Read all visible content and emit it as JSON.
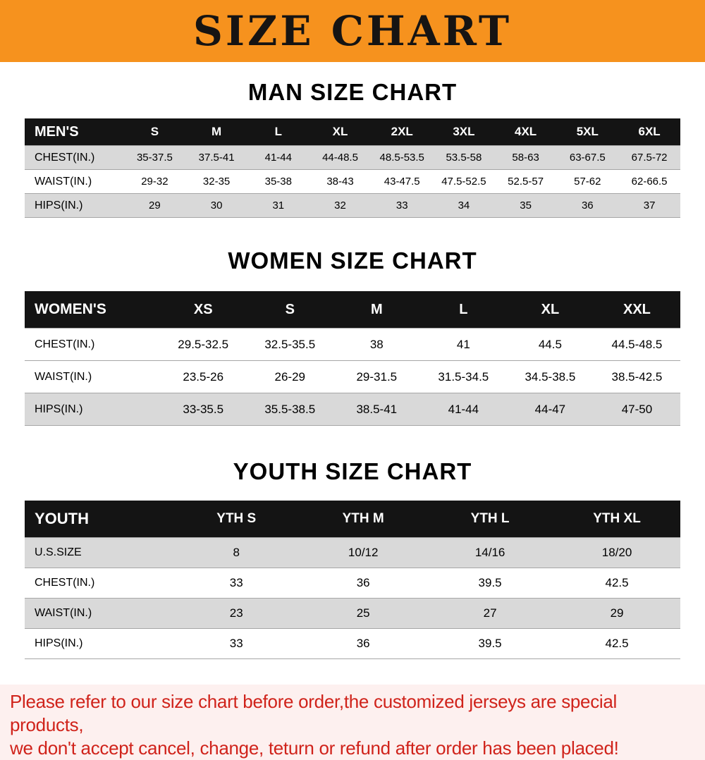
{
  "banner": {
    "title": "SIZE CHART",
    "bg_color": "#f6921e"
  },
  "sections": {
    "mens": {
      "heading": "MAN SIZE CHART",
      "table": {
        "header": [
          "MEN'S",
          "S",
          "M",
          "L",
          "XL",
          "2XL",
          "3XL",
          "4XL",
          "5XL",
          "6XL"
        ],
        "rows": [
          {
            "label": "CHEST(IN.)",
            "values": [
              "35-37.5",
              "37.5-41",
              "41-44",
              "44-48.5",
              "48.5-53.5",
              "53.5-58",
              "58-63",
              "63-67.5",
              "67.5-72"
            ]
          },
          {
            "label": "WAIST(IN.)",
            "values": [
              "29-32",
              "32-35",
              "35-38",
              "38-43",
              "43-47.5",
              "47.5-52.5",
              "52.5-57",
              "57-62",
              "62-66.5"
            ]
          },
          {
            "label": "HIPS(IN.)",
            "values": [
              "29",
              "30",
              "31",
              "32",
              "33",
              "34",
              "35",
              "36",
              "37"
            ]
          }
        ]
      }
    },
    "womens": {
      "heading": "WOMEN SIZE CHART",
      "table": {
        "header": [
          "WOMEN'S",
          "XS",
          "S",
          "M",
          "L",
          "XL",
          "XXL"
        ],
        "rows": [
          {
            "label": "CHEST(IN.)",
            "values": [
              "29.5-32.5",
              "32.5-35.5",
              "38",
              "41",
              "44.5",
              "44.5-48.5"
            ]
          },
          {
            "label": "WAIST(IN.)",
            "values": [
              "23.5-26",
              "26-29",
              "29-31.5",
              "31.5-34.5",
              "34.5-38.5",
              "38.5-42.5"
            ]
          },
          {
            "label": "HIPS(IN.)",
            "values": [
              "33-35.5",
              "35.5-38.5",
              "38.5-41",
              "41-44",
              "44-47",
              "47-50"
            ]
          }
        ]
      }
    },
    "youth": {
      "heading": "YOUTH SIZE CHART",
      "table": {
        "header": [
          "YOUTH",
          "YTH S",
          "YTH M",
          "YTH L",
          "YTH XL"
        ],
        "rows": [
          {
            "label": "U.S.SIZE",
            "values": [
              "8",
              "10/12",
              "14/16",
              "18/20"
            ]
          },
          {
            "label": "CHEST(IN.)",
            "values": [
              "33",
              "36",
              "39.5",
              "42.5"
            ]
          },
          {
            "label": "WAIST(IN.)",
            "values": [
              "23",
              "25",
              "27",
              "29"
            ]
          },
          {
            "label": "HIPS(IN.)",
            "values": [
              "33",
              "36",
              "39.5",
              "42.5"
            ]
          }
        ]
      }
    }
  },
  "footer": {
    "line1": "Please refer to our size chart before order,the customized jerseys are special products,",
    "line2": "we don't accept cancel, change, teturn or refund after order has been placed!",
    "text_color": "#d0231b"
  }
}
